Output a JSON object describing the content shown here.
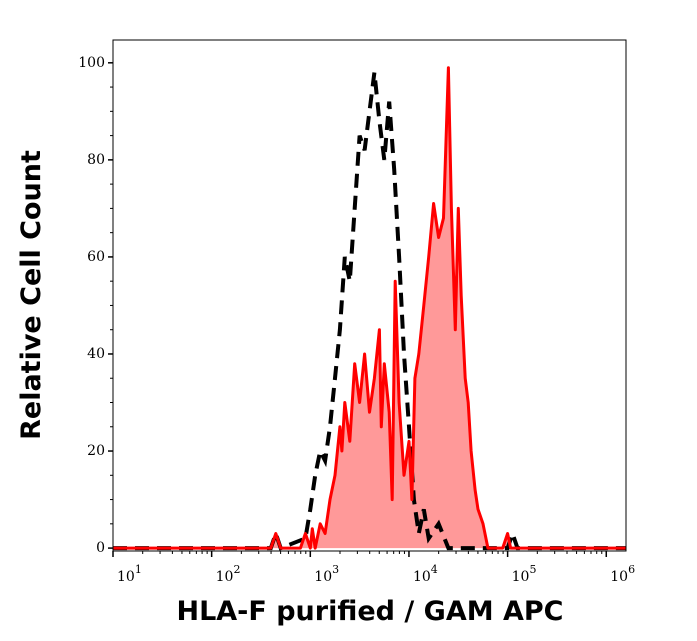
{
  "chart_data": {
    "type": "area",
    "title": "",
    "xlabel": "HLA-F purified / GAM APC",
    "ylabel": "Relative Cell Count",
    "x_scale": "log",
    "xlim": [
      10,
      1584893
    ],
    "ylim": [
      -0.6,
      104.7
    ],
    "x_ticks": [
      {
        "base": "10",
        "exp": "1"
      },
      {
        "base": "10",
        "exp": "2"
      },
      {
        "base": "10",
        "exp": "3"
      },
      {
        "base": "10",
        "exp": "4"
      },
      {
        "base": "10",
        "exp": "5"
      },
      {
        "base": "10",
        "exp": "6"
      }
    ],
    "y_ticks": [
      "0",
      "20",
      "40",
      "60",
      "80",
      "100"
    ],
    "grid": false,
    "series": [
      {
        "style": "dashed line",
        "color": "#000000",
        "x_log10": [
          1.0,
          2.6,
          2.65,
          2.7,
          2.95,
          3.0,
          3.05,
          3.1,
          3.15,
          3.2,
          3.25,
          3.3,
          3.35,
          3.4,
          3.45,
          3.5,
          3.55,
          3.6,
          3.65,
          3.7,
          3.75,
          3.8,
          3.85,
          3.9,
          3.95,
          4.0,
          4.05,
          4.1,
          4.15,
          4.2,
          4.3,
          4.4,
          5.0,
          5.05,
          5.1,
          6.2
        ],
        "values": [
          0,
          0,
          3,
          0,
          2,
          8,
          15,
          20,
          18,
          25,
          35,
          45,
          60,
          55,
          70,
          85,
          82,
          90,
          98,
          88,
          80,
          92,
          78,
          60,
          40,
          25,
          10,
          3,
          8,
          2,
          5,
          0,
          0,
          3,
          0,
          0
        ]
      },
      {
        "style": "filled area",
        "color": "#ff0000",
        "fill": "#ff9999",
        "x_log10": [
          1.0,
          2.6,
          2.65,
          2.7,
          2.9,
          2.95,
          3.0,
          3.02,
          3.05,
          3.1,
          3.15,
          3.2,
          3.25,
          3.3,
          3.32,
          3.35,
          3.4,
          3.45,
          3.5,
          3.55,
          3.6,
          3.65,
          3.7,
          3.72,
          3.75,
          3.8,
          3.83,
          3.86,
          3.9,
          3.95,
          4.0,
          4.03,
          4.06,
          4.1,
          4.15,
          4.2,
          4.25,
          4.3,
          4.35,
          4.4,
          4.43,
          4.47,
          4.5,
          4.53,
          4.57,
          4.6,
          4.63,
          4.67,
          4.7,
          4.75,
          4.8,
          4.95,
          5.0,
          5.03,
          6.2
        ],
        "values": [
          0,
          0,
          3,
          0,
          0,
          3,
          0,
          4,
          0,
          5,
          3,
          10,
          15,
          25,
          20,
          30,
          22,
          38,
          30,
          40,
          28,
          35,
          45,
          25,
          38,
          28,
          10,
          55,
          30,
          15,
          22,
          10,
          35,
          40,
          50,
          60,
          71,
          64,
          68,
          99,
          70,
          45,
          70,
          52,
          35,
          30,
          20,
          12,
          8,
          5,
          0,
          0,
          3,
          0,
          0
        ]
      }
    ]
  }
}
